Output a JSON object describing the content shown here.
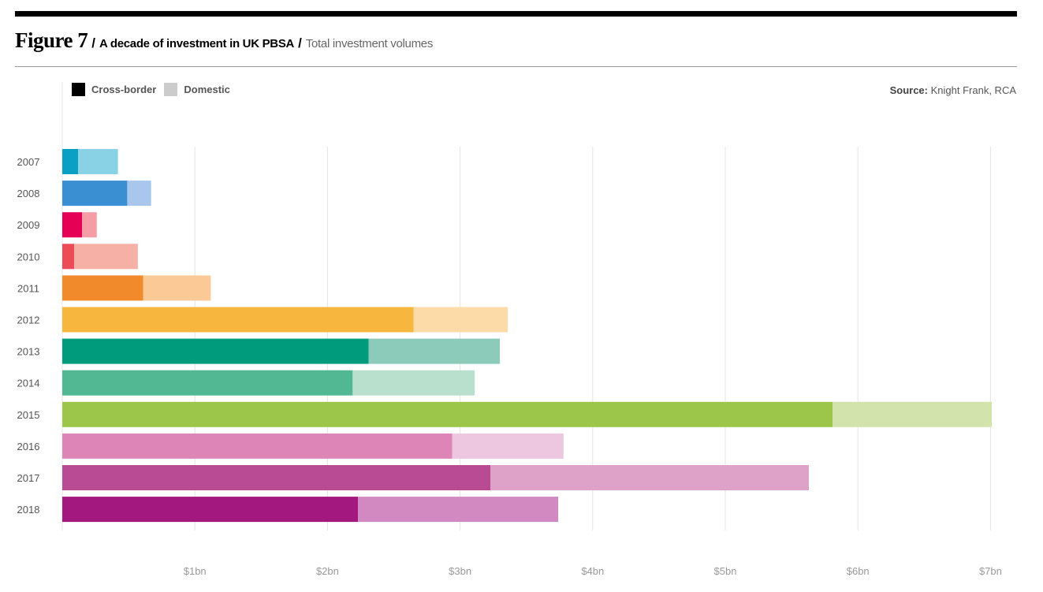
{
  "header": {
    "figure_label": "Figure 7",
    "separator": "/",
    "title": "A decade of investment in UK PBSA",
    "subtitle": "Total investment volumes"
  },
  "legend": {
    "items": [
      {
        "label": "Cross-border",
        "color": "#000000"
      },
      {
        "label": "Domestic",
        "color": "#cccccc"
      }
    ]
  },
  "source": {
    "label": "Source:",
    "text": "Knight Frank, RCA"
  },
  "chart_data": {
    "type": "bar",
    "orientation": "horizontal",
    "stacked": true,
    "title": "A decade of investment in UK PBSA",
    "subtitle": "Total investment volumes",
    "xlabel": "",
    "ylabel": "",
    "unit": "bn",
    "xlim": [
      0,
      7
    ],
    "x_ticks": [
      1,
      2,
      3,
      4,
      5,
      6,
      7
    ],
    "x_tick_labels": [
      "$1bn",
      "$2bn",
      "$3bn",
      "$4bn",
      "$5bn",
      "$6bn",
      "$7bn"
    ],
    "categories": [
      "2007",
      "2008",
      "2009",
      "2010",
      "2011",
      "2012",
      "2013",
      "2014",
      "2015",
      "2016",
      "2017",
      "2018"
    ],
    "series": [
      {
        "name": "Cross-border",
        "values": [
          0.12,
          0.49,
          0.15,
          0.09,
          0.61,
          2.65,
          2.31,
          2.19,
          5.81,
          2.94,
          3.23,
          2.23
        ]
      },
      {
        "name": "Domestic",
        "values": [
          0.3,
          0.18,
          0.11,
          0.48,
          0.51,
          0.71,
          0.99,
          0.92,
          1.2,
          0.84,
          2.4,
          1.51
        ]
      }
    ],
    "bar_colors": {
      "cross_border": [
        "#0aa0c6",
        "#3a8fd3",
        "#e50056",
        "#ec4c57",
        "#f08a2b",
        "#f7b73e",
        "#009a7c",
        "#52b893",
        "#9bc64a",
        "#dd85b6",
        "#b94a94",
        "#a2187e"
      ],
      "domestic": [
        "#89d1e4",
        "#a9c6ec",
        "#f59ca5",
        "#f6b0a6",
        "#fbc996",
        "#fcdba8",
        "#8ccab9",
        "#b9dfcd",
        "#d2e4ab",
        "#edc6df",
        "#dea1c8",
        "#d289c1"
      ]
    },
    "gridlines": true,
    "legend_position": "top-left"
  }
}
